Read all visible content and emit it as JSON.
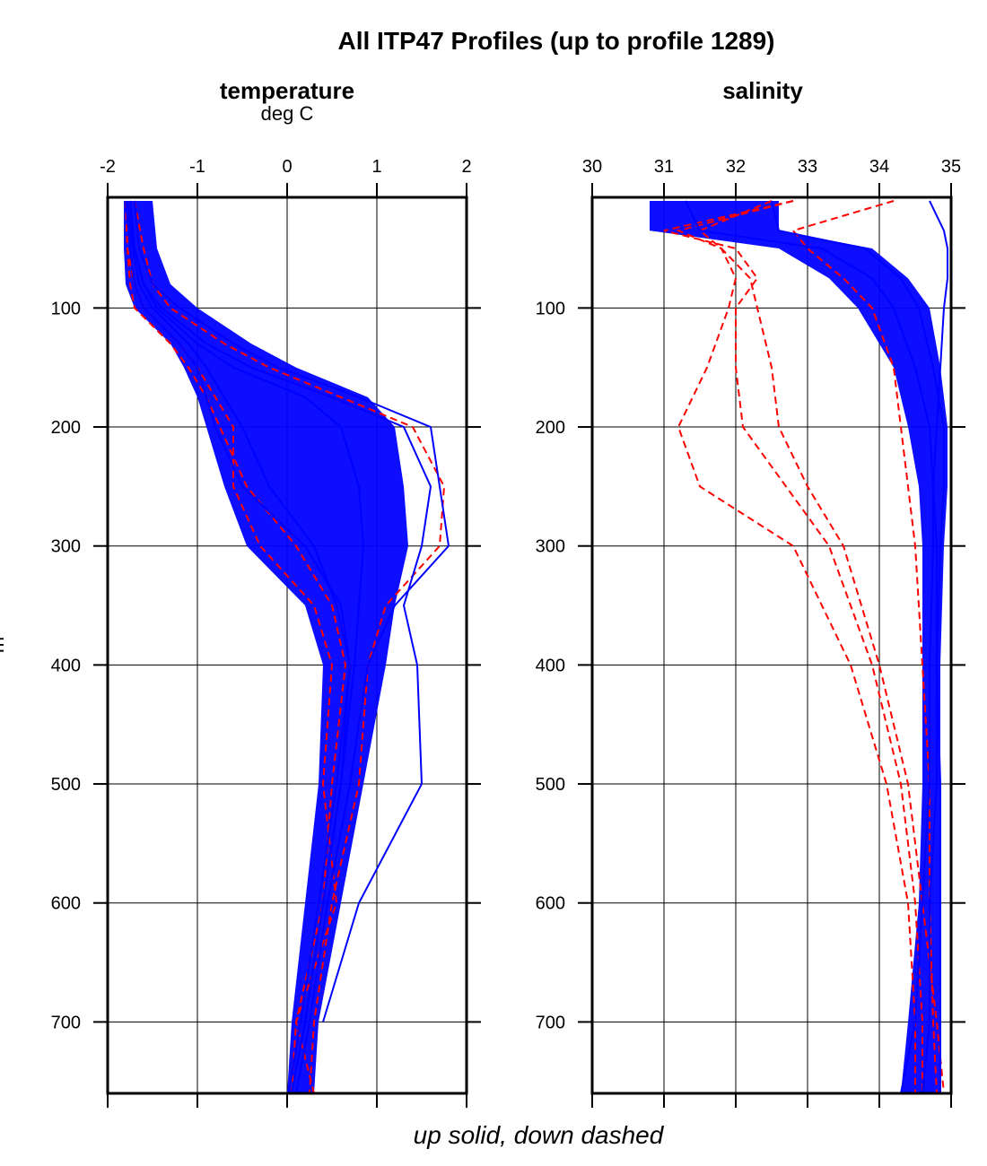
{
  "title": "All ITP47 Profiles (up to profile 1289)",
  "footer": "up solid, down dashed",
  "chart_data": {
    "ylabel": "m",
    "ylim": [
      760,
      7
    ],
    "yticks": [
      100,
      200,
      300,
      400,
      500,
      600,
      700
    ],
    "colors": {
      "up": "#0000ff",
      "down": "#ff0000"
    },
    "grid": true,
    "panels": [
      {
        "type": "line",
        "title": "temperature",
        "unit": "deg C",
        "xlim": [
          -2,
          2
        ],
        "xticks": [
          -2,
          -1,
          0,
          1,
          2
        ],
        "depth": [
          10,
          50,
          80,
          100,
          130,
          150,
          175,
          200,
          250,
          300,
          350,
          400,
          500,
          600,
          700,
          760
        ],
        "envelope": {
          "min": [
            -1.82,
            -1.82,
            -1.8,
            -1.7,
            -1.3,
            -1.15,
            -1.0,
            -0.9,
            -0.7,
            -0.45,
            0.2,
            0.4,
            0.35,
            0.2,
            0.05,
            0.0
          ],
          "max": [
            -1.5,
            -1.45,
            -1.3,
            -1.0,
            -0.4,
            0.1,
            0.9,
            1.2,
            1.3,
            1.35,
            1.2,
            1.1,
            0.85,
            0.6,
            0.35,
            0.3
          ]
        },
        "series": [
          {
            "dir": "up",
            "values": [
              -1.75,
              -1.7,
              -1.6,
              -1.45,
              -1.0,
              -0.6,
              0.2,
              0.6,
              0.8,
              0.85,
              0.8,
              0.75,
              0.6,
              0.4,
              0.2,
              0.05
            ]
          },
          {
            "dir": "up",
            "values": [
              -1.7,
              -1.65,
              -1.5,
              -1.2,
              -0.6,
              -0.1,
              0.8,
              1.6,
              1.7,
              1.8,
              1.2,
              0.9,
              0.7,
              0.45,
              0.25,
              0.1
            ]
          },
          {
            "dir": "up",
            "values": [
              -1.8,
              -1.75,
              -1.7,
              -1.6,
              -1.2,
              -1.0,
              -0.9,
              -0.8,
              -0.5,
              0.2,
              0.6,
              0.7,
              0.6,
              0.4,
              0.2,
              0.05
            ]
          },
          {
            "dir": "up",
            "values": [
              -1.75,
              -1.7,
              -1.6,
              -1.4,
              -0.9,
              -0.4,
              0.5,
              1.3,
              1.6,
              1.5,
              1.3,
              1.45,
              1.5,
              0.8,
              0.4,
              null
            ]
          },
          {
            "dir": "up",
            "values": [
              -1.78,
              -1.72,
              -1.65,
              -1.5,
              -1.1,
              -0.9,
              -0.7,
              -0.5,
              -0.2,
              0.3,
              0.55,
              0.7,
              0.55,
              0.35,
              0.15,
              0.02
            ]
          },
          {
            "dir": "down",
            "values": [
              -1.8,
              -1.78,
              -1.7,
              -1.6,
              -1.2,
              -1.0,
              -0.8,
              -0.6,
              -0.6,
              -0.3,
              0.3,
              0.5,
              0.4,
              0.55,
              0.1,
              0.05
            ]
          },
          {
            "dir": "down",
            "values": [
              -1.7,
              -1.6,
              -1.5,
              -1.3,
              -0.7,
              -0.2,
              0.6,
              1.4,
              1.75,
              1.7,
              1.1,
              0.9,
              0.8,
              0.5,
              0.3,
              0.25
            ]
          },
          {
            "dir": "down",
            "values": [
              -1.8,
              -1.78,
              -1.75,
              -1.7,
              -1.3,
              -1.1,
              -0.9,
              -0.75,
              -0.45,
              0.1,
              0.5,
              0.65,
              0.5,
              0.4,
              0.1,
              0.3
            ]
          }
        ]
      },
      {
        "type": "line",
        "title": "salinity",
        "unit": "",
        "xlim": [
          30,
          35
        ],
        "xticks": [
          30,
          31,
          32,
          33,
          34,
          35
        ],
        "depth": [
          10,
          35,
          50,
          75,
          100,
          150,
          200,
          250,
          300,
          400,
          500,
          600,
          700,
          760
        ],
        "envelope": {
          "min": [
            30.8,
            30.8,
            32.6,
            33.3,
            33.7,
            34.2,
            34.4,
            34.55,
            34.6,
            34.6,
            34.6,
            34.55,
            34.4,
            34.3
          ],
          "max": [
            32.6,
            32.6,
            33.9,
            34.4,
            34.7,
            34.85,
            34.95,
            34.95,
            34.9,
            34.85,
            34.85,
            34.85,
            34.85,
            34.85
          ]
        },
        "series": [
          {
            "dir": "up",
            "values": [
              31.3,
              31.5,
              33.2,
              33.9,
              34.2,
              34.5,
              34.7,
              34.75,
              34.8,
              34.8,
              34.85,
              34.85,
              34.85,
              34.85
            ]
          },
          {
            "dir": "up",
            "values": [
              34.7,
              34.9,
              34.95,
              34.95,
              34.9,
              34.85,
              34.8,
              34.75,
              34.75,
              34.7,
              34.7,
              34.6,
              34.5,
              34.3
            ]
          },
          {
            "dir": "up",
            "values": [
              32.5,
              32.6,
              33.8,
              34.3,
              34.55,
              34.75,
              34.9,
              34.9,
              34.85,
              34.8,
              34.8,
              34.7,
              34.7,
              34.6
            ]
          },
          {
            "dir": "down",
            "values": [
              32.8,
              31.2,
              31.8,
              32.0,
              31.9,
              31.6,
              31.2,
              31.5,
              32.8,
              33.6,
              34.1,
              34.4,
              34.5,
              34.5
            ]
          },
          {
            "dir": "down",
            "values": [
              32.8,
              31.0,
              32.0,
              32.3,
              32.0,
              32.0,
              32.1,
              32.7,
              33.3,
              33.9,
              34.3,
              34.5,
              34.6,
              34.6
            ]
          },
          {
            "dir": "down",
            "values": [
              34.2,
              32.8,
              33.0,
              33.5,
              33.9,
              34.2,
              34.3,
              34.4,
              34.5,
              34.6,
              34.7,
              34.7,
              34.75,
              34.8
            ]
          },
          {
            "dir": "down",
            "values": [
              32.5,
              31.5,
              31.8,
              32.2,
              32.3,
              32.5,
              32.6,
              33.0,
              33.5,
              34.0,
              34.4,
              34.6,
              34.8,
              34.9
            ]
          }
        ]
      }
    ]
  }
}
